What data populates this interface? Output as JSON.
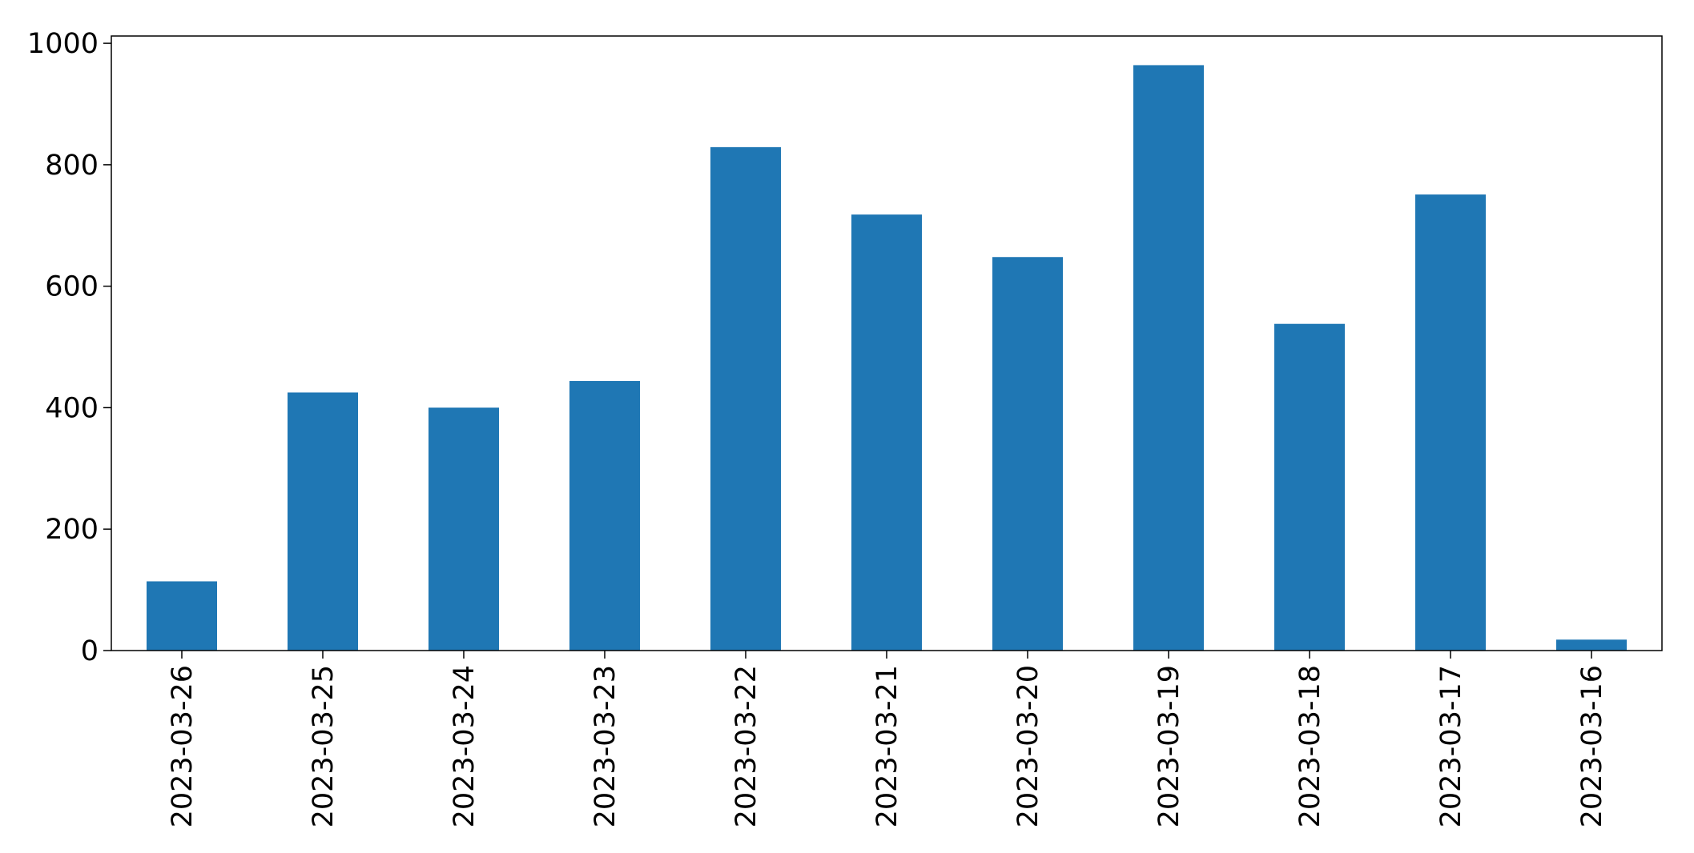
{
  "chart_data": {
    "type": "bar",
    "categories": [
      "2023-03-26",
      "2023-03-25",
      "2023-03-24",
      "2023-03-23",
      "2023-03-22",
      "2023-03-21",
      "2023-03-20",
      "2023-03-19",
      "2023-03-18",
      "2023-03-17",
      "2023-03-16"
    ],
    "values": [
      114,
      425,
      400,
      444,
      829,
      718,
      648,
      964,
      538,
      751,
      18
    ],
    "color": "#1f77b4",
    "ylim": [
      0,
      1012
    ],
    "yticks": [
      0,
      200,
      400,
      600,
      800,
      1000
    ],
    "grid": false
  }
}
